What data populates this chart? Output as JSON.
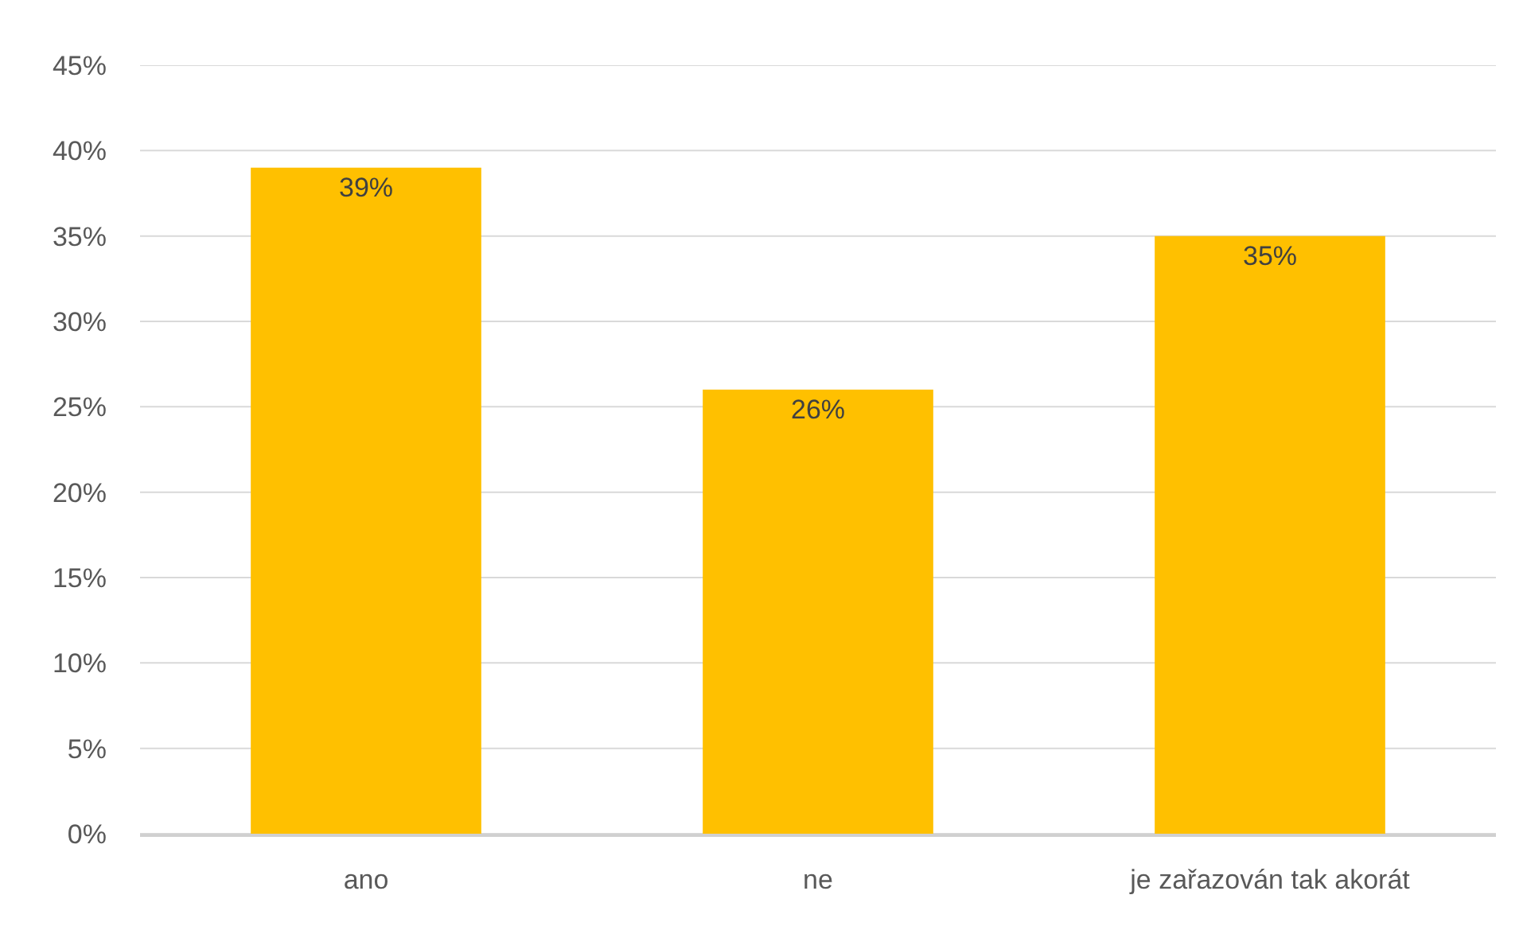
{
  "chart_data": {
    "type": "bar",
    "categories": [
      "ano",
      "ne",
      "je zařazován tak akorát"
    ],
    "values": [
      39,
      26,
      35
    ],
    "color": "#ffc000",
    "data_labels": true,
    "value_labels": [
      "39%",
      "26%",
      "35%"
    ],
    "ylim": [
      0,
      45
    ],
    "yticks": [
      {
        "value": 0,
        "label": "0%"
      },
      {
        "value": 5,
        "label": "5%"
      },
      {
        "value": 10,
        "label": "10%"
      },
      {
        "value": 15,
        "label": "15%"
      },
      {
        "value": 20,
        "label": "20%"
      },
      {
        "value": 25,
        "label": "25%"
      },
      {
        "value": 30,
        "label": "30%"
      },
      {
        "value": 35,
        "label": "35%"
      },
      {
        "value": 40,
        "label": "40%"
      },
      {
        "value": 45,
        "label": "45%"
      }
    ],
    "grid": "y"
  }
}
